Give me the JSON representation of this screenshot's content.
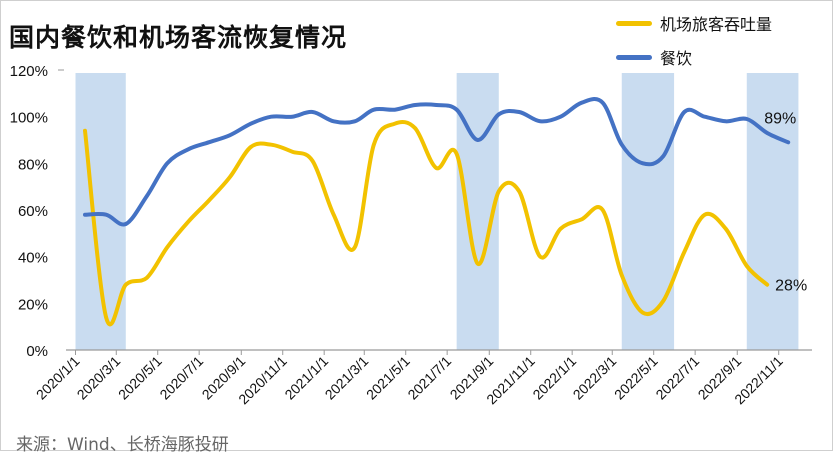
{
  "title": "国内餐饮和机场客流恢复情况",
  "source": "来源：Wind、长桥海豚投研",
  "colors": {
    "airport": "#F2C200",
    "dining": "#4472C4",
    "shade": "#C9DCF0",
    "axis": "#9a9a9a"
  },
  "chart_data": {
    "type": "line",
    "title": "国内餐饮和机场客流恢复情况",
    "xlabel": "",
    "ylabel": "",
    "ylim": [
      0,
      1.2
    ],
    "yticks": [
      {
        "value": 0,
        "label": "0%"
      },
      {
        "value": 0.2,
        "label": "20%"
      },
      {
        "value": 0.4,
        "label": "40%"
      },
      {
        "value": 0.6,
        "label": "60%"
      },
      {
        "value": 0.8,
        "label": "80%"
      },
      {
        "value": 1.0,
        "label": "100%"
      },
      {
        "value": 1.2,
        "label": "120%"
      }
    ],
    "xticks": [
      "2020/1/1",
      "2020/3/1",
      "2020/5/1",
      "2020/7/1",
      "2020/9/1",
      "2020/11/1",
      "2021/1/1",
      "2021/3/1",
      "2021/5/1",
      "2021/7/1",
      "2021/9/1",
      "2021/11/1",
      "2022/1/1",
      "2022/3/1",
      "2022/5/1",
      "2022/7/1",
      "2022/9/1",
      "2022/11/1"
    ],
    "shaded_periods": [
      [
        "2020/1/1",
        "2020/3/15"
      ],
      [
        "2021/7/15",
        "2021/9/15"
      ],
      [
        "2022/3/15",
        "2022/5/31"
      ],
      [
        "2022/9/15",
        "2022/11/30"
      ]
    ],
    "series": [
      {
        "name": "机场旅客吞吐量",
        "color": "#F2C200",
        "end_label": "28%",
        "points": [
          [
            "2020/1/15",
            0.94
          ],
          [
            "2020/2/15",
            0.14
          ],
          [
            "2020/3/15",
            0.28
          ],
          [
            "2020/4/15",
            0.31
          ],
          [
            "2020/5/15",
            0.44
          ],
          [
            "2020/6/15",
            0.55
          ],
          [
            "2020/7/15",
            0.64
          ],
          [
            "2020/8/15",
            0.74
          ],
          [
            "2020/9/15",
            0.87
          ],
          [
            "2020/10/15",
            0.88
          ],
          [
            "2020/11/15",
            0.85
          ],
          [
            "2020/12/15",
            0.81
          ],
          [
            "2021/1/15",
            0.58
          ],
          [
            "2021/2/15",
            0.44
          ],
          [
            "2021/3/15",
            0.88
          ],
          [
            "2021/4/15",
            0.97
          ],
          [
            "2021/5/15",
            0.95
          ],
          [
            "2021/6/15",
            0.78
          ],
          [
            "2021/7/15",
            0.84
          ],
          [
            "2021/8/15",
            0.37
          ],
          [
            "2021/9/15",
            0.68
          ],
          [
            "2021/10/15",
            0.68
          ],
          [
            "2021/11/15",
            0.4
          ],
          [
            "2021/12/15",
            0.52
          ],
          [
            "2022/1/15",
            0.56
          ],
          [
            "2022/2/15",
            0.6
          ],
          [
            "2022/3/15",
            0.32
          ],
          [
            "2022/4/15",
            0.16
          ],
          [
            "2022/5/15",
            0.21
          ],
          [
            "2022/6/15",
            0.42
          ],
          [
            "2022/7/15",
            0.58
          ],
          [
            "2022/8/15",
            0.52
          ],
          [
            "2022/9/15",
            0.36
          ],
          [
            "2022/10/15",
            0.28
          ]
        ]
      },
      {
        "name": "餐饮",
        "color": "#4472C4",
        "end_label": "89%",
        "points": [
          [
            "2020/1/15",
            0.58
          ],
          [
            "2020/2/15",
            0.58
          ],
          [
            "2020/3/15",
            0.54
          ],
          [
            "2020/4/15",
            0.66
          ],
          [
            "2020/5/15",
            0.8
          ],
          [
            "2020/6/15",
            0.86
          ],
          [
            "2020/7/15",
            0.89
          ],
          [
            "2020/8/15",
            0.92
          ],
          [
            "2020/9/15",
            0.97
          ],
          [
            "2020/10/15",
            1.0
          ],
          [
            "2020/11/15",
            1.0
          ],
          [
            "2020/12/15",
            1.02
          ],
          [
            "2021/1/15",
            0.98
          ],
          [
            "2021/2/15",
            0.98
          ],
          [
            "2021/3/15",
            1.03
          ],
          [
            "2021/4/15",
            1.03
          ],
          [
            "2021/5/15",
            1.05
          ],
          [
            "2021/6/15",
            1.05
          ],
          [
            "2021/7/15",
            1.03
          ],
          [
            "2021/8/15",
            0.9
          ],
          [
            "2021/9/15",
            1.01
          ],
          [
            "2021/10/15",
            1.02
          ],
          [
            "2021/11/15",
            0.98
          ],
          [
            "2021/12/15",
            1.0
          ],
          [
            "2022/1/15",
            1.06
          ],
          [
            "2022/2/15",
            1.06
          ],
          [
            "2022/3/15",
            0.88
          ],
          [
            "2022/4/15",
            0.8
          ],
          [
            "2022/5/15",
            0.83
          ],
          [
            "2022/6/15",
            1.02
          ],
          [
            "2022/7/15",
            1.0
          ],
          [
            "2022/8/15",
            0.98
          ],
          [
            "2022/9/15",
            0.99
          ],
          [
            "2022/10/15",
            0.93
          ],
          [
            "2022/11/15",
            0.89
          ]
        ]
      }
    ],
    "legend": {
      "position": "top-right",
      "entries": [
        "机场旅客吞吐量",
        "餐饮"
      ]
    },
    "grid": false
  }
}
